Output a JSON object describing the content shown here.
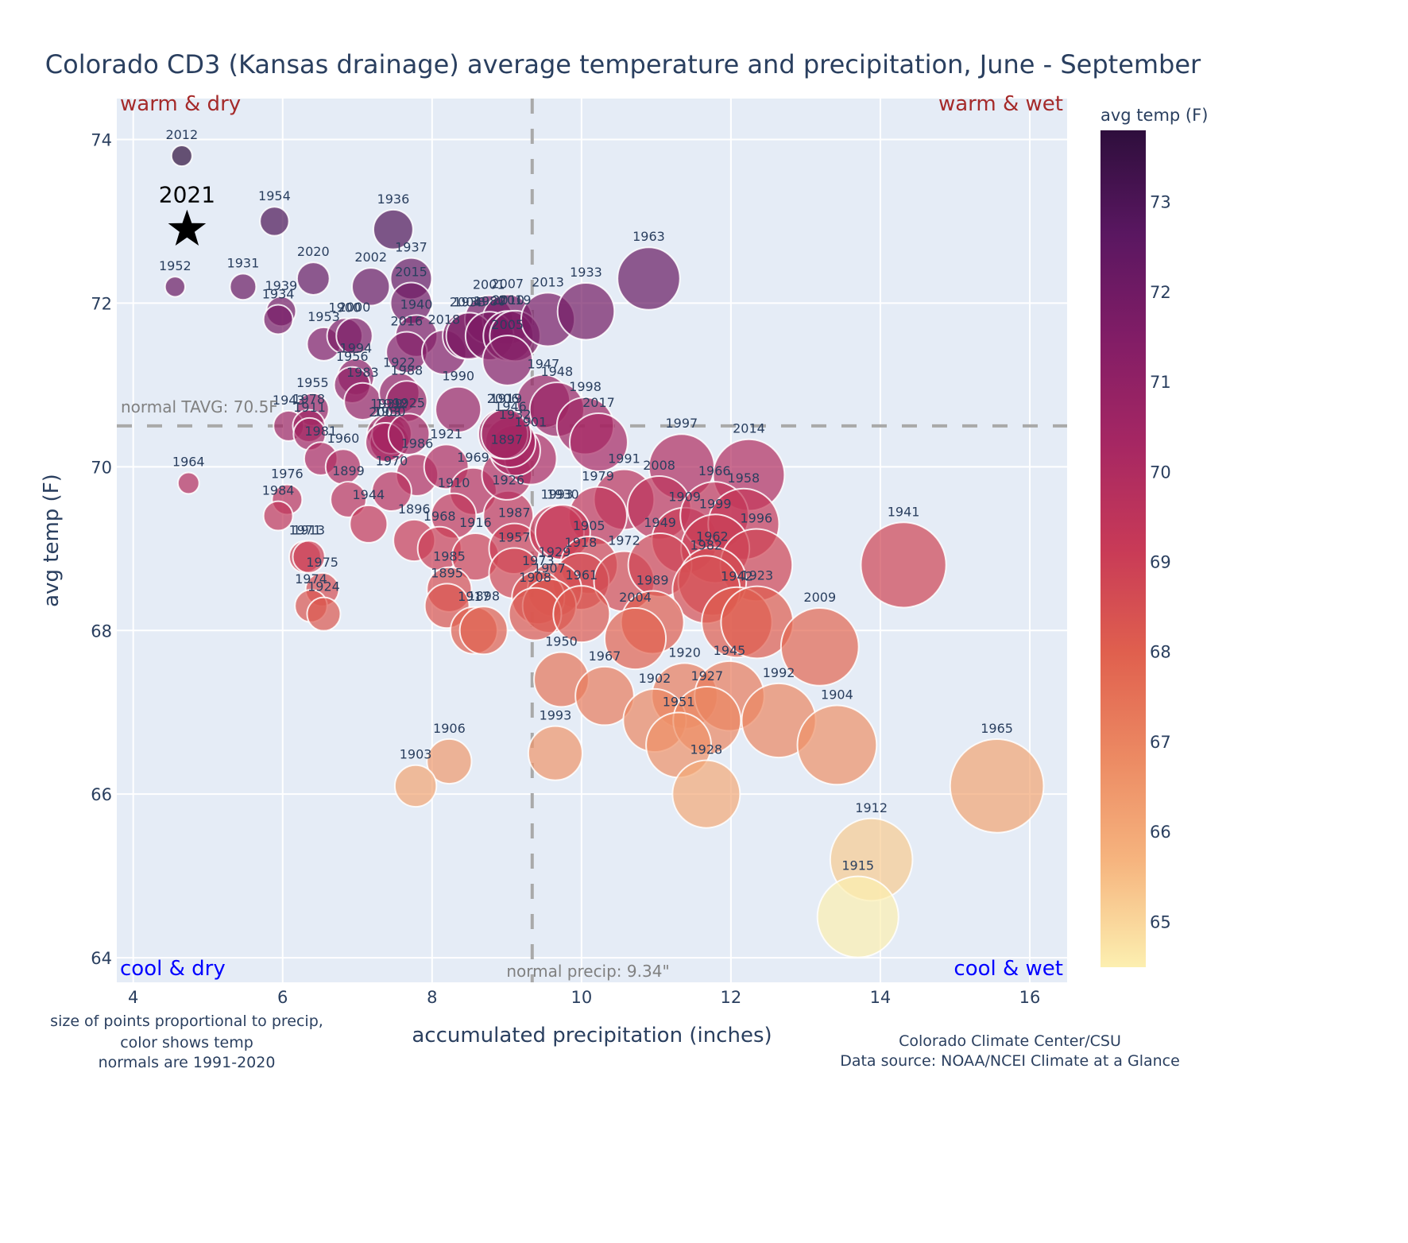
{
  "chart_data": {
    "type": "scatter",
    "title": "Colorado CD3 (Kansas drainage) average temperature and precipitation, June - September",
    "xlabel": "accumulated precipitation (inches)",
    "ylabel": "avg temp (F)",
    "xlim": [
      3.78,
      16.5
    ],
    "ylim": [
      63.7,
      74.5
    ],
    "xticks": [
      4,
      6,
      8,
      10,
      12,
      14,
      16
    ],
    "yticks": [
      64,
      66,
      68,
      70,
      72,
      74
    ],
    "grid": true,
    "colorbar": {
      "title": "avg temp (F)",
      "range": [
        64.5,
        73.8
      ],
      "ticks": [
        65,
        66,
        67,
        68,
        69,
        70,
        71,
        72,
        73
      ],
      "colorscale": [
        "#fcefb0",
        "#f6b57f",
        "#ec8a63",
        "#e0604e",
        "#c83a57",
        "#a62763",
        "#821d66",
        "#5a1761",
        "#2e0e3c"
      ]
    },
    "normal_temp": 70.5,
    "normal_temp_label": "normal TAVG: 70.5F",
    "normal_precip": 9.34,
    "normal_precip_label": "normal precip: 9.34\"",
    "quadrant_labels": {
      "top_left": "warm & dry",
      "top_right": "warm & wet",
      "bottom_left": "cool & dry",
      "bottom_right": "cool & wet"
    },
    "highlight": {
      "year": "2021",
      "x": 4.72,
      "y": 72.9,
      "marker": "star"
    },
    "size_encoding": "precipitation",
    "color_encoding": "temperature",
    "points": [
      {
        "year": "2012",
        "x": 4.65,
        "y": 73.8
      },
      {
        "year": "1952",
        "x": 4.56,
        "y": 72.2
      },
      {
        "year": "1954",
        "x": 5.89,
        "y": 73.0
      },
      {
        "year": "1931",
        "x": 5.47,
        "y": 72.2
      },
      {
        "year": "1939",
        "x": 5.98,
        "y": 71.9
      },
      {
        "year": "1934",
        "x": 5.94,
        "y": 71.8
      },
      {
        "year": "2020",
        "x": 6.41,
        "y": 72.3
      },
      {
        "year": "1936",
        "x": 7.48,
        "y": 72.9
      },
      {
        "year": "2002",
        "x": 7.18,
        "y": 72.2
      },
      {
        "year": "1937",
        "x": 7.72,
        "y": 72.3
      },
      {
        "year": "2015",
        "x": 7.72,
        "y": 72.0
      },
      {
        "year": "1953",
        "x": 6.55,
        "y": 71.5
      },
      {
        "year": "1900",
        "x": 6.83,
        "y": 71.6
      },
      {
        "year": "2000",
        "x": 6.96,
        "y": 71.6
      },
      {
        "year": "1940",
        "x": 7.79,
        "y": 71.6
      },
      {
        "year": "2016",
        "x": 7.66,
        "y": 71.4
      },
      {
        "year": "2018",
        "x": 8.16,
        "y": 71.4
      },
      {
        "year": "1994",
        "x": 6.98,
        "y": 71.1
      },
      {
        "year": "1956",
        "x": 6.93,
        "y": 71.0
      },
      {
        "year": "1983",
        "x": 7.07,
        "y": 70.8
      },
      {
        "year": "1922",
        "x": 7.56,
        "y": 70.9
      },
      {
        "year": "1988",
        "x": 7.66,
        "y": 70.8
      },
      {
        "year": "1955",
        "x": 6.4,
        "y": 70.7
      },
      {
        "year": "1943",
        "x": 6.08,
        "y": 70.5
      },
      {
        "year": "1978",
        "x": 6.35,
        "y": 70.5
      },
      {
        "year": "1911",
        "x": 6.36,
        "y": 70.4
      },
      {
        "year": "1981",
        "x": 6.51,
        "y": 70.1
      },
      {
        "year": "1960",
        "x": 6.81,
        "y": 70.0
      },
      {
        "year": "1939b",
        "x": 7.39,
        "y": 70.4
      },
      {
        "year": "1930",
        "x": 7.43,
        "y": 70.3
      },
      {
        "year": "1992b",
        "x": 7.46,
        "y": 70.4
      },
      {
        "year": "2003",
        "x": 7.37,
        "y": 70.3
      },
      {
        "year": "1925",
        "x": 7.69,
        "y": 70.4
      },
      {
        "year": "1986",
        "x": 7.8,
        "y": 69.9
      },
      {
        "year": "1990",
        "x": 8.35,
        "y": 70.7
      },
      {
        "year": "1921",
        "x": 8.19,
        "y": 70.0
      },
      {
        "year": "1970",
        "x": 7.46,
        "y": 69.7
      },
      {
        "year": "1964",
        "x": 4.74,
        "y": 69.8
      },
      {
        "year": "1976",
        "x": 6.06,
        "y": 69.6
      },
      {
        "year": "1984",
        "x": 5.94,
        "y": 69.4
      },
      {
        "year": "1899",
        "x": 6.88,
        "y": 69.6
      },
      {
        "year": "1944",
        "x": 7.15,
        "y": 69.3
      },
      {
        "year": "1896",
        "x": 7.76,
        "y": 69.1
      },
      {
        "year": "1969",
        "x": 8.55,
        "y": 69.7
      },
      {
        "year": "1910",
        "x": 8.29,
        "y": 69.4
      },
      {
        "year": "1968",
        "x": 8.1,
        "y": 69.0
      },
      {
        "year": "1916",
        "x": 8.58,
        "y": 68.9
      },
      {
        "year": "1926",
        "x": 9.02,
        "y": 69.4
      },
      {
        "year": "1987",
        "x": 9.1,
        "y": 69.0
      },
      {
        "year": "1897",
        "x": 9.0,
        "y": 69.9
      },
      {
        "year": "1957",
        "x": 9.1,
        "y": 68.7
      },
      {
        "year": "1901",
        "x": 9.32,
        "y": 70.1
      },
      {
        "year": "1932",
        "x": 9.11,
        "y": 70.2
      },
      {
        "year": "1946",
        "x": 9.05,
        "y": 70.3
      },
      {
        "year": "2006",
        "x": 8.95,
        "y": 70.4
      },
      {
        "year": "1919",
        "x": 8.99,
        "y": 70.4
      },
      {
        "year": "2004b",
        "x": 8.45,
        "y": 71.6
      },
      {
        "year": "2001",
        "x": 8.76,
        "y": 71.8
      },
      {
        "year": "2007",
        "x": 9.01,
        "y": 71.8
      },
      {
        "year": "1938",
        "x": 8.5,
        "y": 71.6
      },
      {
        "year": "1980",
        "x": 8.77,
        "y": 71.6
      },
      {
        "year": "2010",
        "x": 9.02,
        "y": 71.6
      },
      {
        "year": "2019",
        "x": 9.11,
        "y": 71.6
      },
      {
        "year": "2005",
        "x": 9.01,
        "y": 71.3
      },
      {
        "year": "2013",
        "x": 9.55,
        "y": 71.8
      },
      {
        "year": "1933",
        "x": 10.06,
        "y": 71.9
      },
      {
        "year": "1963",
        "x": 10.9,
        "y": 72.3
      },
      {
        "year": "1947",
        "x": 9.49,
        "y": 70.8
      },
      {
        "year": "1948",
        "x": 9.67,
        "y": 70.7
      },
      {
        "year": "1998",
        "x": 10.05,
        "y": 70.5
      },
      {
        "year": "2017",
        "x": 10.23,
        "y": 70.3
      },
      {
        "year": "1997",
        "x": 11.34,
        "y": 70.0
      },
      {
        "year": "2014",
        "x": 12.24,
        "y": 69.9
      },
      {
        "year": "1991",
        "x": 10.57,
        "y": 69.6
      },
      {
        "year": "2008",
        "x": 11.04,
        "y": 69.5
      },
      {
        "year": "1979",
        "x": 10.22,
        "y": 69.4
      },
      {
        "year": "1909",
        "x": 11.38,
        "y": 69.1
      },
      {
        "year": "1966",
        "x": 11.78,
        "y": 69.4
      },
      {
        "year": "1958",
        "x": 12.17,
        "y": 69.3
      },
      {
        "year": "1999",
        "x": 11.79,
        "y": 69.0
      },
      {
        "year": "1996",
        "x": 12.34,
        "y": 68.8
      },
      {
        "year": "1941",
        "x": 14.31,
        "y": 68.8
      },
      {
        "year": "1993b",
        "x": 9.67,
        "y": 69.2
      },
      {
        "year": "1930b",
        "x": 9.75,
        "y": 69.2
      },
      {
        "year": "1905",
        "x": 10.1,
        "y": 68.8
      },
      {
        "year": "1918",
        "x": 9.99,
        "y": 68.6
      },
      {
        "year": "1972",
        "x": 10.57,
        "y": 68.6
      },
      {
        "year": "1949",
        "x": 11.05,
        "y": 68.8
      },
      {
        "year": "1962",
        "x": 11.75,
        "y": 68.6
      },
      {
        "year": "1982",
        "x": 11.67,
        "y": 68.5
      },
      {
        "year": "1942",
        "x": 12.08,
        "y": 68.1
      },
      {
        "year": "1923",
        "x": 12.35,
        "y": 68.1
      },
      {
        "year": "1929",
        "x": 9.64,
        "y": 68.5
      },
      {
        "year": "1973",
        "x": 9.42,
        "y": 68.4
      },
      {
        "year": "1907",
        "x": 9.57,
        "y": 68.3
      },
      {
        "year": "1908",
        "x": 9.38,
        "y": 68.2
      },
      {
        "year": "1961",
        "x": 10.0,
        "y": 68.2
      },
      {
        "year": "1989",
        "x": 10.95,
        "y": 68.1
      },
      {
        "year": "2004",
        "x": 10.72,
        "y": 67.9
      },
      {
        "year": "2009",
        "x": 13.19,
        "y": 67.8
      },
      {
        "year": "1985",
        "x": 8.23,
        "y": 68.5
      },
      {
        "year": "1895",
        "x": 8.2,
        "y": 68.3
      },
      {
        "year": "1917",
        "x": 8.56,
        "y": 68.0
      },
      {
        "year": "1898",
        "x": 8.69,
        "y": 68.0
      },
      {
        "year": "1971",
        "x": 6.3,
        "y": 68.9
      },
      {
        "year": "1913",
        "x": 6.35,
        "y": 68.9
      },
      {
        "year": "1975",
        "x": 6.53,
        "y": 68.5
      },
      {
        "year": "1974",
        "x": 6.38,
        "y": 68.3
      },
      {
        "year": "1924",
        "x": 6.55,
        "y": 68.2
      },
      {
        "year": "1950",
        "x": 9.73,
        "y": 67.4
      },
      {
        "year": "1967",
        "x": 10.31,
        "y": 67.2
      },
      {
        "year": "1920",
        "x": 11.38,
        "y": 67.2
      },
      {
        "year": "1945",
        "x": 11.98,
        "y": 67.2
      },
      {
        "year": "1902",
        "x": 10.98,
        "y": 66.9
      },
      {
        "year": "1927",
        "x": 11.68,
        "y": 66.9
      },
      {
        "year": "1992",
        "x": 12.64,
        "y": 66.9
      },
      {
        "year": "1951",
        "x": 11.3,
        "y": 66.6
      },
      {
        "year": "1904",
        "x": 13.42,
        "y": 66.6
      },
      {
        "year": "1993",
        "x": 9.65,
        "y": 66.5
      },
      {
        "year": "1906",
        "x": 8.23,
        "y": 66.4
      },
      {
        "year": "1903",
        "x": 7.78,
        "y": 66.1
      },
      {
        "year": "1928",
        "x": 11.67,
        "y": 66.0
      },
      {
        "year": "1965",
        "x": 15.56,
        "y": 66.1
      },
      {
        "year": "1912",
        "x": 13.88,
        "y": 65.2
      },
      {
        "year": "1915",
        "x": 13.7,
        "y": 64.5
      }
    ]
  },
  "notes": {
    "left_lines": [
      "size of points proportional to precip,",
      "color shows temp",
      "normals are 1991-2020"
    ],
    "right_lines": [
      "Colorado Climate Center/CSU",
      "Data source: NOAA/NCEI Climate at a Glance"
    ]
  }
}
